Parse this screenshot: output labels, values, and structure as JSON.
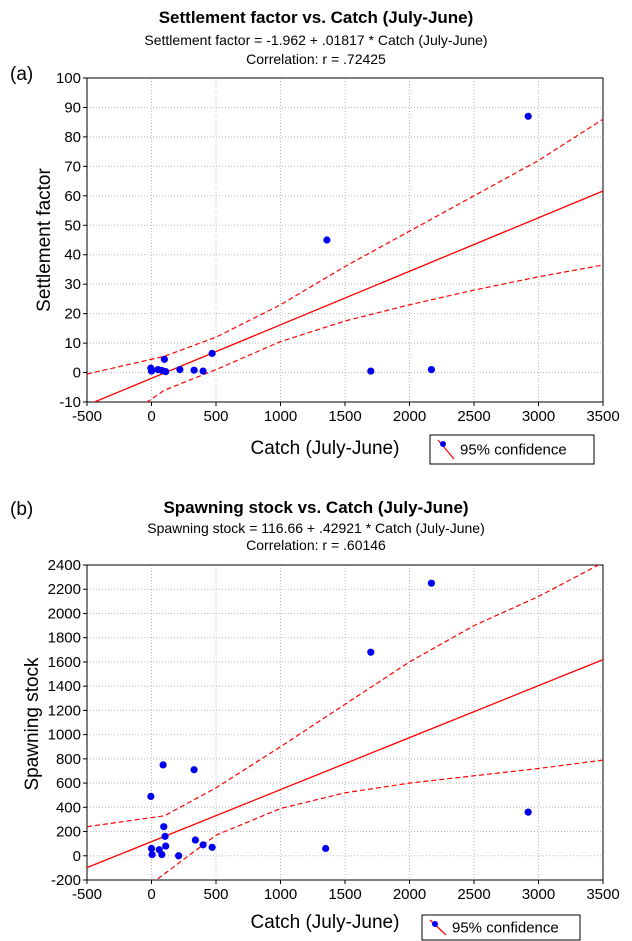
{
  "chart_data": [
    {
      "panel_label": "(a)",
      "type": "scatter",
      "title": "Settlement factor vs. Catch (July-June)",
      "equation": "Settlement factor = -1.962 + .01817 * Catch (July-June)",
      "correlation": "Correlation: r = .72425",
      "xlabel": "Catch (July-June)",
      "ylabel": "Settlement factor",
      "xlim": [
        -500,
        3500
      ],
      "ylim": [
        -10,
        100
      ],
      "xticks": [
        -500,
        0,
        500,
        1000,
        1500,
        2000,
        2500,
        3000,
        3500
      ],
      "yticks": [
        -10,
        0,
        10,
        20,
        30,
        40,
        50,
        60,
        70,
        80,
        90,
        100
      ],
      "grid": true,
      "regression": {
        "intercept": -1.962,
        "slope": 0.01817
      },
      "confidence_band": {
        "x": [
          -500,
          100,
          500,
          1000,
          1500,
          2000,
          2500,
          3000,
          3500
        ],
        "upper": [
          -0.5,
          5.5,
          12,
          23,
          36,
          48,
          60,
          72,
          86
        ],
        "lower": [
          -24,
          -6,
          1,
          10.5,
          17.5,
          23,
          28,
          32.5,
          36.5
        ]
      },
      "points": [
        {
          "x": -5,
          "y": 1.5
        },
        {
          "x": 0,
          "y": 0.5
        },
        {
          "x": 50,
          "y": 1
        },
        {
          "x": 80,
          "y": 0.7
        },
        {
          "x": 100,
          "y": 4.5
        },
        {
          "x": 110,
          "y": 0.3
        },
        {
          "x": 220,
          "y": 1
        },
        {
          "x": 330,
          "y": 0.8
        },
        {
          "x": 400,
          "y": 0.5
        },
        {
          "x": 470,
          "y": 6.5
        },
        {
          "x": 1360,
          "y": 45
        },
        {
          "x": 1700,
          "y": 0.5
        },
        {
          "x": 2170,
          "y": 1
        },
        {
          "x": 2920,
          "y": 87
        }
      ],
      "legend": {
        "label": "95% confidence",
        "placement": "below-right"
      },
      "colors": {
        "points": "#0000ee",
        "fit": "#ff0000"
      }
    },
    {
      "panel_label": "(b)",
      "type": "scatter",
      "title": "Spawning stock vs. Catch (July-June)",
      "equation": "Spawning stock = 116.66 + .42921 * Catch (July-June)",
      "correlation": "Correlation: r = .60146",
      "xlabel": "Catch (July-June)",
      "ylabel": "Spawning stock",
      "xlim": [
        -500,
        3500
      ],
      "ylim": [
        -200,
        2400
      ],
      "xticks": [
        -500,
        0,
        500,
        1000,
        1500,
        2000,
        2500,
        3000,
        3500
      ],
      "yticks": [
        -200,
        0,
        200,
        400,
        600,
        800,
        1000,
        1200,
        1400,
        1600,
        1800,
        2000,
        2200,
        2400
      ],
      "grid": true,
      "regression": {
        "intercept": 116.66,
        "slope": 0.42921
      },
      "confidence_band": {
        "x": [
          -500,
          100,
          500,
          1000,
          1500,
          2000,
          2500,
          3000,
          3500
        ],
        "upper": [
          240,
          330,
          560,
          900,
          1250,
          1600,
          1900,
          2140,
          2420
        ],
        "lower": [
          -620,
          -150,
          170,
          390,
          520,
          600,
          660,
          720,
          790
        ]
      },
      "points": [
        {
          "x": -5,
          "y": 490
        },
        {
          "x": 0,
          "y": 60
        },
        {
          "x": 5,
          "y": 10
        },
        {
          "x": 60,
          "y": 50
        },
        {
          "x": 80,
          "y": 10
        },
        {
          "x": 90,
          "y": 750
        },
        {
          "x": 95,
          "y": 240
        },
        {
          "x": 105,
          "y": 160
        },
        {
          "x": 110,
          "y": 80
        },
        {
          "x": 210,
          "y": 0
        },
        {
          "x": 330,
          "y": 710
        },
        {
          "x": 340,
          "y": 130
        },
        {
          "x": 400,
          "y": 90
        },
        {
          "x": 470,
          "y": 70
        },
        {
          "x": 1350,
          "y": 60
        },
        {
          "x": 1700,
          "y": 1680
        },
        {
          "x": 2170,
          "y": 2250
        },
        {
          "x": 2920,
          "y": 360
        }
      ],
      "legend": {
        "label": "95% confidence",
        "placement": "below-right"
      },
      "colors": {
        "points": "#0000ee",
        "fit": "#ff0000"
      }
    }
  ]
}
